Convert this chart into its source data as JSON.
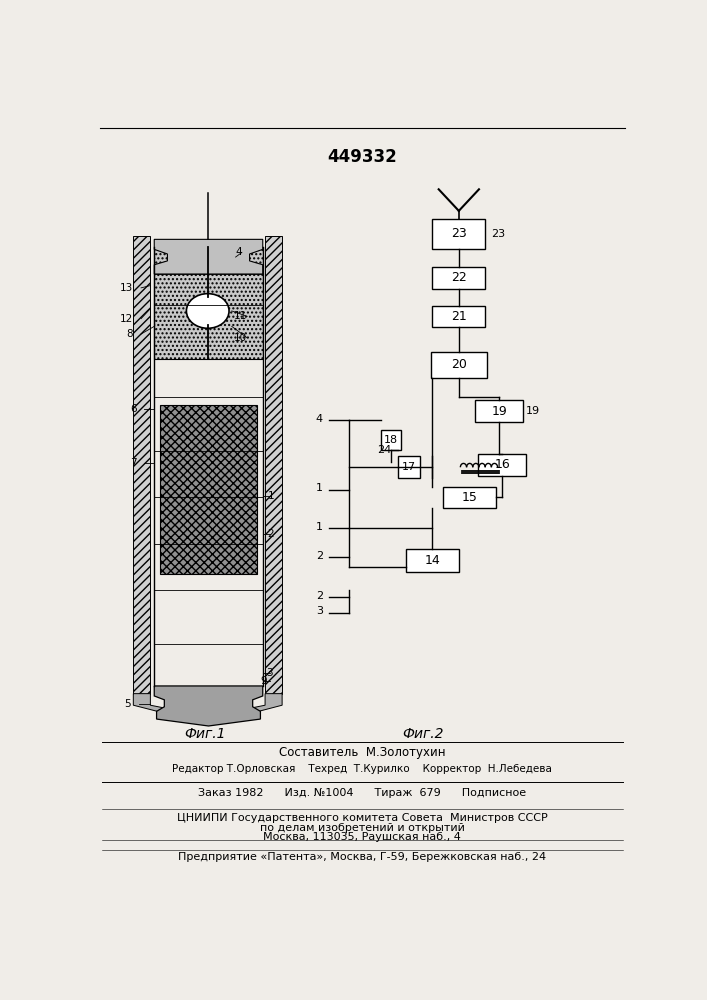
{
  "title": "449332",
  "bg_color": "#f0ede8",
  "fig1_label": "Фиг.1",
  "fig2_label": "Фиг.2",
  "footer_lines": [
    "Составитель  М.Золотухин",
    "Редактор Т.Орловская    Техред  Т.Курилко    Корректор  Н.Лебедева",
    "Заказ 1982      Изд. №1004      Тираж  679      Подписное",
    "ЦНИИПИ Государственного комитета Совета  Министров СССР",
    "по делам изобретений и открытий",
    "Москва, 113035, Раушская наб., 4",
    "Предприятие «Патента», Москва, Г-59, Бережковская наб., 24"
  ]
}
